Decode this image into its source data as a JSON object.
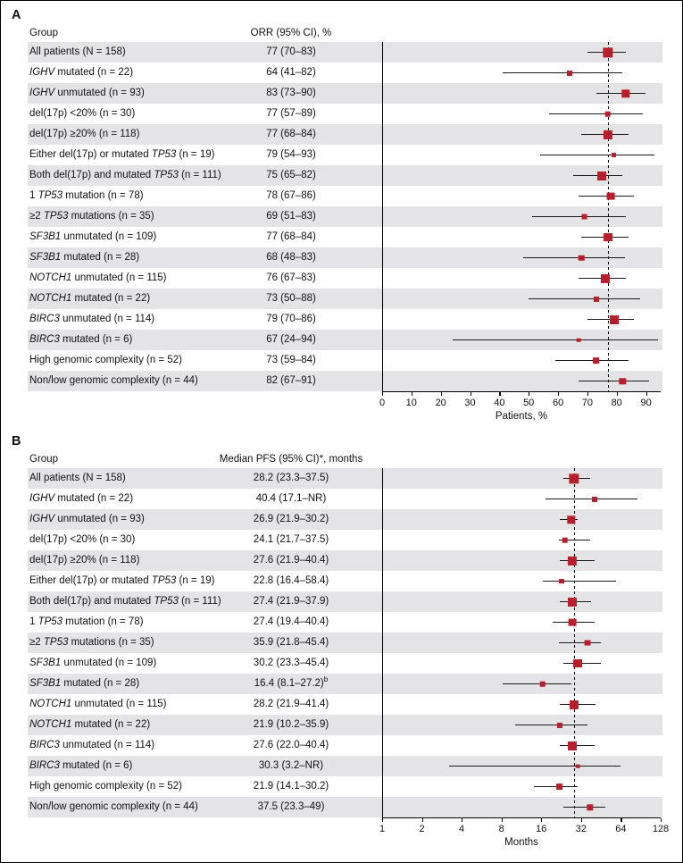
{
  "colors": {
    "marker": "#b81f2d",
    "row_alt": "#e4e4e6",
    "line": "#000000"
  },
  "chart_data": [
    {
      "type": "scatter",
      "subtype": "forest",
      "panel_label": "A",
      "col_headers": {
        "group": "Group",
        "estimate": "ORR (95% CI), %"
      },
      "xlabel": "Patients, %",
      "x_scale": "linear",
      "xlim": [
        0,
        95
      ],
      "xticks": [
        0,
        10,
        20,
        30,
        40,
        50,
        60,
        70,
        80,
        90
      ],
      "reference_line": 77,
      "grid": false,
      "rows": [
        {
          "group_parts": [
            {
              "text": "All patients (N = 158)",
              "italic": false
            }
          ],
          "estimate": "77 (70–83)",
          "est": 77,
          "lo": 70,
          "hi": 83,
          "n": 158
        },
        {
          "group_parts": [
            {
              "text": "IGHV",
              "italic": true
            },
            {
              "text": " mutated (n = 22)",
              "italic": false
            }
          ],
          "estimate": "64 (41–82)",
          "est": 64,
          "lo": 41,
          "hi": 82,
          "n": 22
        },
        {
          "group_parts": [
            {
              "text": "IGHV",
              "italic": true
            },
            {
              "text": " unmutated (n = 93)",
              "italic": false
            }
          ],
          "estimate": "83 (73–90)",
          "est": 83,
          "lo": 73,
          "hi": 90,
          "n": 93
        },
        {
          "group_parts": [
            {
              "text": "del(17p) <20% (n = 30)",
              "italic": false
            }
          ],
          "estimate": "77 (57–89)",
          "est": 77,
          "lo": 57,
          "hi": 89,
          "n": 30
        },
        {
          "group_parts": [
            {
              "text": "del(17p) ≥20% (n = 118)",
              "italic": false
            }
          ],
          "estimate": "77 (68–84)",
          "est": 77,
          "lo": 68,
          "hi": 84,
          "n": 118
        },
        {
          "group_parts": [
            {
              "text": "Either del(17p) or mutated ",
              "italic": false
            },
            {
              "text": "TP53",
              "italic": true
            },
            {
              "text": " (n = 19)",
              "italic": false
            }
          ],
          "estimate": "79 (54–93)",
          "est": 79,
          "lo": 54,
          "hi": 93,
          "n": 19
        },
        {
          "group_parts": [
            {
              "text": "Both del(17p) and mutated ",
              "italic": false
            },
            {
              "text": "TP53",
              "italic": true
            },
            {
              "text": " (n = 111)",
              "italic": false
            }
          ],
          "estimate": "75 (65–82)",
          "est": 75,
          "lo": 65,
          "hi": 82,
          "n": 111
        },
        {
          "group_parts": [
            {
              "text": "1 ",
              "italic": false
            },
            {
              "text": "TP53",
              "italic": true
            },
            {
              "text": " mutation (n = 78)",
              "italic": false
            }
          ],
          "estimate": "78 (67–86)",
          "est": 78,
          "lo": 67,
          "hi": 86,
          "n": 78
        },
        {
          "group_parts": [
            {
              "text": "≥2 ",
              "italic": false
            },
            {
              "text": "TP53",
              "italic": true
            },
            {
              "text": " mutations (n = 35)",
              "italic": false
            }
          ],
          "estimate": "69 (51–83)",
          "est": 69,
          "lo": 51,
          "hi": 83,
          "n": 35
        },
        {
          "group_parts": [
            {
              "text": "SF3B1",
              "italic": true
            },
            {
              "text": " unmutated (n = 109)",
              "italic": false
            }
          ],
          "estimate": "77 (68–84)",
          "est": 77,
          "lo": 68,
          "hi": 84,
          "n": 109
        },
        {
          "group_parts": [
            {
              "text": "SF3B1",
              "italic": true
            },
            {
              "text": " mutated (n = 28)",
              "italic": false
            }
          ],
          "estimate": "68 (48–83)",
          "est": 68,
          "lo": 48,
          "hi": 83,
          "n": 28
        },
        {
          "group_parts": [
            {
              "text": "NOTCH1",
              "italic": true
            },
            {
              "text": " unmutated (n = 115)",
              "italic": false
            }
          ],
          "estimate": "76 (67–83)",
          "est": 76,
          "lo": 67,
          "hi": 83,
          "n": 115
        },
        {
          "group_parts": [
            {
              "text": "NOTCH1",
              "italic": true
            },
            {
              "text": " mutated (n = 22)",
              "italic": false
            }
          ],
          "estimate": "73 (50–88)",
          "est": 73,
          "lo": 50,
          "hi": 88,
          "n": 22
        },
        {
          "group_parts": [
            {
              "text": "BIRC3",
              "italic": true
            },
            {
              "text": " unmutated (n = 114)",
              "italic": false
            }
          ],
          "estimate": "79 (70–86)",
          "est": 79,
          "lo": 70,
          "hi": 86,
          "n": 114
        },
        {
          "group_parts": [
            {
              "text": "BIRC3",
              "italic": true
            },
            {
              "text": " mutated (n = 6)",
              "italic": false
            }
          ],
          "estimate": "67 (24–94)",
          "est": 67,
          "lo": 24,
          "hi": 94,
          "n": 6
        },
        {
          "group_parts": [
            {
              "text": "High genomic complexity (n = 52)",
              "italic": false
            }
          ],
          "estimate": "73 (59–84)",
          "est": 73,
          "lo": 59,
          "hi": 84,
          "n": 52
        },
        {
          "group_parts": [
            {
              "text": "Non/low genomic complexity (n = 44)",
              "italic": false
            }
          ],
          "estimate": "82 (67–91)",
          "est": 82,
          "lo": 67,
          "hi": 91,
          "n": 44
        }
      ]
    },
    {
      "type": "scatter",
      "subtype": "forest",
      "panel_label": "B",
      "col_headers": {
        "group": "Group",
        "estimate": "Median PFS (95% CI)*, months"
      },
      "xlabel": "Months",
      "x_scale": "log2",
      "xlim": [
        1,
        128
      ],
      "xticks": [
        1,
        2,
        4,
        8,
        16,
        32,
        64,
        128
      ],
      "reference_line": 28.2,
      "grid": false,
      "rows": [
        {
          "group_parts": [
            {
              "text": "All patients (N = 158)",
              "italic": false
            }
          ],
          "estimate": "28.2 (23.3–37.5)",
          "est": 28.2,
          "lo": 23.3,
          "hi": 37.5,
          "n": 158
        },
        {
          "group_parts": [
            {
              "text": "IGHV",
              "italic": true
            },
            {
              "text": " mutated (n = 22)",
              "italic": false
            }
          ],
          "estimate": "40.4 (17.1–NR)",
          "est": 40.4,
          "lo": 17.1,
          "hi": "NR",
          "hi_plot": 85,
          "n": 22
        },
        {
          "group_parts": [
            {
              "text": "IGHV",
              "italic": true
            },
            {
              "text": " unmutated (n = 93)",
              "italic": false
            }
          ],
          "estimate": "26.9 (21.9–30.2)",
          "est": 26.9,
          "lo": 21.9,
          "hi": 30.2,
          "n": 93
        },
        {
          "group_parts": [
            {
              "text": "del(17p) <20% (n = 30)",
              "italic": false
            }
          ],
          "estimate": "24.1 (21.7–37.5)",
          "est": 24.1,
          "lo": 21.7,
          "hi": 37.5,
          "n": 30
        },
        {
          "group_parts": [
            {
              "text": "del(17p) ≥20% (n = 118)",
              "italic": false
            }
          ],
          "estimate": "27.6 (21.9–40.4)",
          "est": 27.6,
          "lo": 21.9,
          "hi": 40.4,
          "n": 118
        },
        {
          "group_parts": [
            {
              "text": "Either del(17p) or mutated ",
              "italic": false
            },
            {
              "text": "TP53",
              "italic": true
            },
            {
              "text": " (n = 19)",
              "italic": false
            }
          ],
          "estimate": "22.8 (16.4–58.4)",
          "est": 22.8,
          "lo": 16.4,
          "hi": 58.4,
          "n": 19
        },
        {
          "group_parts": [
            {
              "text": "Both del(17p) and mutated ",
              "italic": false
            },
            {
              "text": "TP53",
              "italic": true
            },
            {
              "text": " (n = 111)",
              "italic": false
            }
          ],
          "estimate": "27.4 (21.9–37.9)",
          "est": 27.4,
          "lo": 21.9,
          "hi": 37.9,
          "n": 111
        },
        {
          "group_parts": [
            {
              "text": "1 ",
              "italic": false
            },
            {
              "text": "TP53",
              "italic": true
            },
            {
              "text": " mutation (n = 78)",
              "italic": false
            }
          ],
          "estimate": "27.4 (19.4–40.4)",
          "est": 27.4,
          "lo": 19.4,
          "hi": 40.4,
          "n": 78
        },
        {
          "group_parts": [
            {
              "text": "≥2 ",
              "italic": false
            },
            {
              "text": "TP53",
              "italic": true
            },
            {
              "text": " mutations (n = 35)",
              "italic": false
            }
          ],
          "estimate": "35.9 (21.8–45.4)",
          "est": 35.9,
          "lo": 21.8,
          "hi": 45.4,
          "n": 35
        },
        {
          "group_parts": [
            {
              "text": "SF3B1",
              "italic": true
            },
            {
              "text": " unmutated (n = 109)",
              "italic": false
            }
          ],
          "estimate": "30.2 (23.3–45.4)",
          "est": 30.2,
          "lo": 23.3,
          "hi": 45.4,
          "n": 109
        },
        {
          "group_parts": [
            {
              "text": "SF3B1",
              "italic": true
            },
            {
              "text": " mutated (n = 28)",
              "italic": false
            }
          ],
          "estimate": "16.4 (8.1–27.2)",
          "estimate_sup": "b",
          "est": 16.4,
          "lo": 8.1,
          "hi": 27.2,
          "n": 28
        },
        {
          "group_parts": [
            {
              "text": "NOTCH1",
              "italic": true
            },
            {
              "text": " unmutated (n = 115)",
              "italic": false
            }
          ],
          "estimate": "28.2 (21.9–41.4)",
          "est": 28.2,
          "lo": 21.9,
          "hi": 41.4,
          "n": 115
        },
        {
          "group_parts": [
            {
              "text": "NOTCH1",
              "italic": true
            },
            {
              "text": " mutated (n = 22)",
              "italic": false
            }
          ],
          "estimate": "21.9 (10.2–35.9)",
          "est": 21.9,
          "lo": 10.2,
          "hi": 35.9,
          "n": 22
        },
        {
          "group_parts": [
            {
              "text": "BIRC3",
              "italic": true
            },
            {
              "text": " unmutated (n = 114)",
              "italic": false
            }
          ],
          "estimate": "27.6 (22.0–40.4)",
          "est": 27.6,
          "lo": 22.0,
          "hi": 40.4,
          "n": 114
        },
        {
          "group_parts": [
            {
              "text": "BIRC3",
              "italic": true
            },
            {
              "text": " mutated (n = 6)",
              "italic": false
            }
          ],
          "estimate": "30.3 (3.2–NR)",
          "est": 30.3,
          "lo": 3.2,
          "hi": "NR",
          "hi_plot": 64,
          "n": 6
        },
        {
          "group_parts": [
            {
              "text": "High genomic complexity (n = 52)",
              "italic": false
            }
          ],
          "estimate": "21.9 (14.1–30.2)",
          "est": 21.9,
          "lo": 14.1,
          "hi": 30.2,
          "n": 52
        },
        {
          "group_parts": [
            {
              "text": "Non/low genomic complexity (n = 44)",
              "italic": false
            }
          ],
          "estimate": "37.5 (23.3–49)",
          "est": 37.5,
          "lo": 23.3,
          "hi": 49,
          "n": 44
        }
      ]
    }
  ]
}
